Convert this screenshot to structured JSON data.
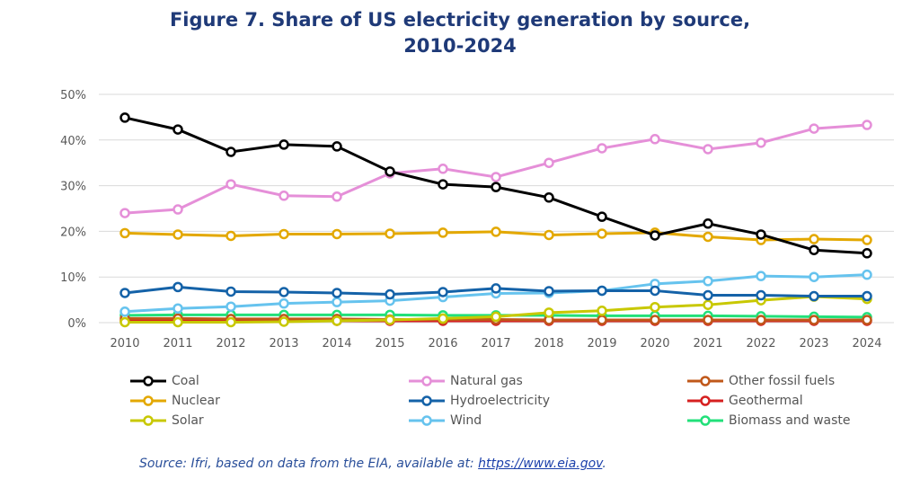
{
  "chart_data": {
    "type": "line",
    "title": "Figure 7. Share of US electricity generation by source,",
    "title_line2": "2010-2024",
    "x": [
      2010,
      2011,
      2012,
      2013,
      2014,
      2015,
      2016,
      2017,
      2018,
      2019,
      2020,
      2021,
      2022,
      2023,
      2024
    ],
    "ylim": [
      0,
      50
    ],
    "yticks": [
      "0%",
      "10%",
      "20%",
      "30%",
      "40%",
      "50%"
    ],
    "grid": true,
    "legend_placement": "bottom",
    "series": [
      {
        "name": "Coal",
        "color": "#000000",
        "values": [
          44.9,
          42.3,
          37.4,
          39.0,
          38.6,
          33.1,
          30.3,
          29.7,
          27.4,
          23.2,
          19.1,
          21.7,
          19.3,
          15.9,
          15.2
        ]
      },
      {
        "name": "Natural gas",
        "color": "#e58fd8",
        "values": [
          24.0,
          24.8,
          30.3,
          27.8,
          27.6,
          32.7,
          33.7,
          31.9,
          35.0,
          38.2,
          40.2,
          38.0,
          39.4,
          42.5,
          43.3
        ]
      },
      {
        "name": "Other fossil fuels",
        "color": "#c0581a",
        "values": [
          0.9,
          0.9,
          0.8,
          0.8,
          0.8,
          0.7,
          0.7,
          0.7,
          0.6,
          0.6,
          0.6,
          0.6,
          0.6,
          0.6,
          0.6
        ]
      },
      {
        "name": "Nuclear",
        "color": "#e3a800",
        "values": [
          19.6,
          19.3,
          19.0,
          19.4,
          19.4,
          19.5,
          19.7,
          19.9,
          19.2,
          19.5,
          19.7,
          18.8,
          18.1,
          18.3,
          18.1
        ]
      },
      {
        "name": "Hydroelectricity",
        "color": "#1462a8",
        "values": [
          6.5,
          7.8,
          6.8,
          6.7,
          6.5,
          6.2,
          6.7,
          7.5,
          6.9,
          7.0,
          7.0,
          6.0,
          6.0,
          5.8,
          5.8
        ]
      },
      {
        "name": "Geothermal",
        "color": "#d62020",
        "values": [
          0.4,
          0.4,
          0.4,
          0.4,
          0.4,
          0.4,
          0.4,
          0.4,
          0.4,
          0.4,
          0.4,
          0.4,
          0.4,
          0.4,
          0.4
        ]
      },
      {
        "name": "Solar",
        "color": "#c8c800",
        "values": [
          0.1,
          0.1,
          0.1,
          0.2,
          0.4,
          0.6,
          0.9,
          1.3,
          2.2,
          2.6,
          3.4,
          3.9,
          4.9,
          5.7,
          5.2
        ]
      },
      {
        "name": "Wind",
        "color": "#66c3ee",
        "values": [
          2.4,
          3.1,
          3.5,
          4.2,
          4.5,
          4.8,
          5.6,
          6.4,
          6.5,
          7.0,
          8.5,
          9.1,
          10.2,
          10.0,
          10.5
        ]
      },
      {
        "name": "Biomass and waste",
        "color": "#22e07a",
        "values": [
          1.6,
          1.7,
          1.7,
          1.7,
          1.7,
          1.7,
          1.6,
          1.6,
          1.6,
          1.5,
          1.5,
          1.5,
          1.4,
          1.3,
          1.2
        ]
      }
    ]
  },
  "source": {
    "text": "Source: Ifri, based on data from the EIA, available at: ",
    "link": "https://www.eia.gov",
    "end": "."
  }
}
